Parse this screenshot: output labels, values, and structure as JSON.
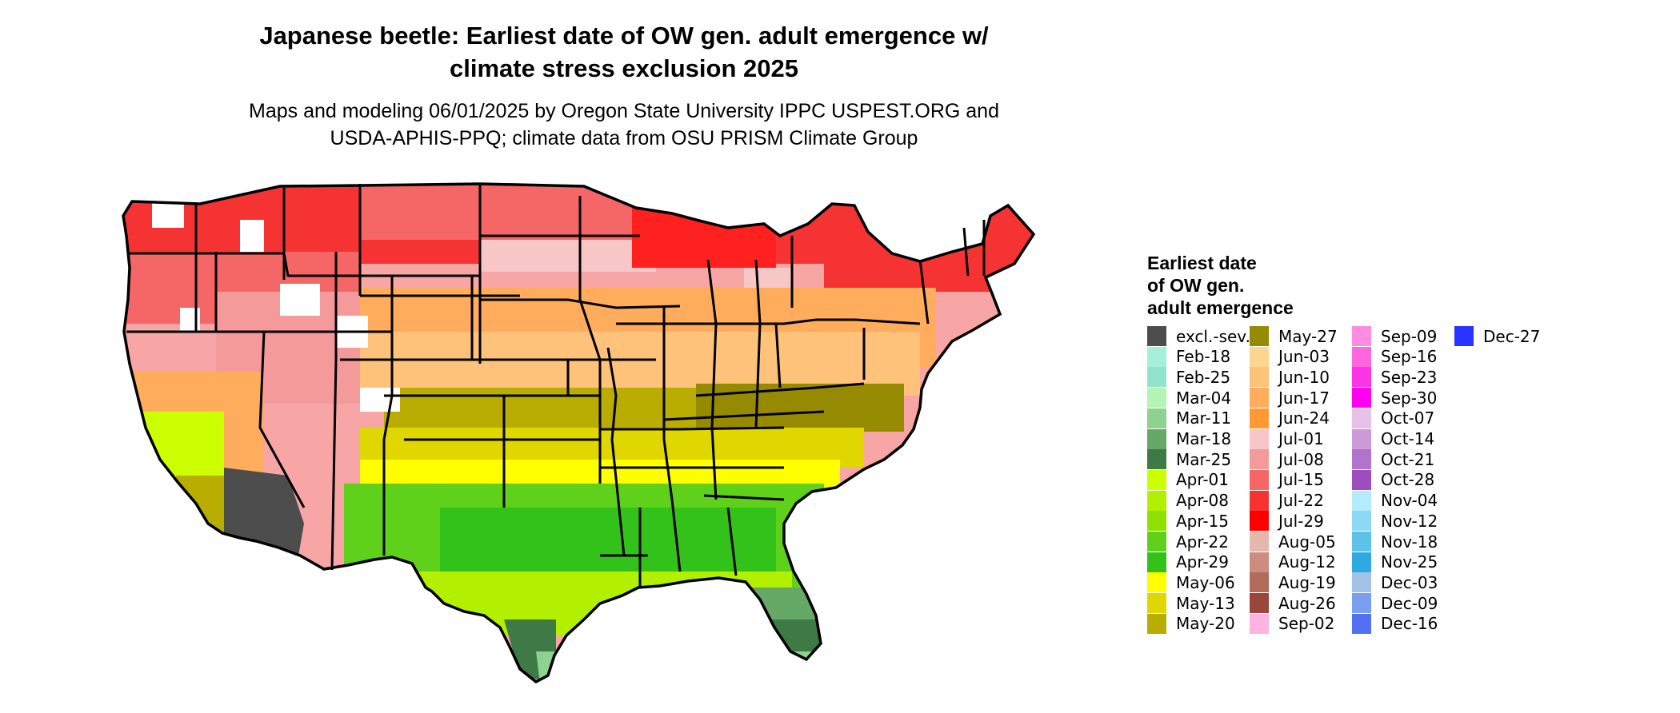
{
  "title": {
    "line1": "Japanese beetle: Earliest date of OW gen. adult emergence w/",
    "line2": "climate stress exclusion 2025"
  },
  "subtitle": {
    "line1": "Maps and modeling 06/01/2025 by Oregon State University IPPC USPEST.ORG and",
    "line2": "USDA-APHIS-PPQ; climate data from OSU PRISM Climate Group"
  },
  "legend": {
    "title_line1": "Earliest date",
    "title_line2": "of OW gen.",
    "title_line3": "adult emergence",
    "items": [
      {
        "label": "excl.-sev.",
        "color": "#4d4d4d"
      },
      {
        "label": "Feb-18",
        "color": "#a6f0d9"
      },
      {
        "label": "Feb-25",
        "color": "#90e3cc"
      },
      {
        "label": "Mar-04",
        "color": "#b4f5b4"
      },
      {
        "label": "Mar-11",
        "color": "#8fd18f"
      },
      {
        "label": "Mar-18",
        "color": "#66a866"
      },
      {
        "label": "Mar-25",
        "color": "#3d7a45"
      },
      {
        "label": "Apr-01",
        "color": "#ccff00"
      },
      {
        "label": "Apr-08",
        "color": "#b3f000"
      },
      {
        "label": "Apr-15",
        "color": "#8ee000"
      },
      {
        "label": "Apr-22",
        "color": "#5fd11a"
      },
      {
        "label": "Apr-29",
        "color": "#33c21a"
      },
      {
        "label": "May-06",
        "color": "#ffff00"
      },
      {
        "label": "May-13",
        "color": "#e0d600"
      },
      {
        "label": "May-20",
        "color": "#b8ad00"
      },
      {
        "label": "May-27",
        "color": "#968a00"
      },
      {
        "label": "Jun-03",
        "color": "#ffd68f"
      },
      {
        "label": "Jun-10",
        "color": "#ffc27a"
      },
      {
        "label": "Jun-17",
        "color": "#ffad5c"
      },
      {
        "label": "Jun-24",
        "color": "#ff9933"
      },
      {
        "label": "Jul-01",
        "color": "#f7c6c6"
      },
      {
        "label": "Jul-08",
        "color": "#f59a9a"
      },
      {
        "label": "Jul-15",
        "color": "#f56666"
      },
      {
        "label": "Jul-22",
        "color": "#f53333"
      },
      {
        "label": "Jul-29",
        "color": "#ff0000"
      },
      {
        "label": "Aug-05",
        "color": "#e6b8ad"
      },
      {
        "label": "Aug-12",
        "color": "#cc8c80"
      },
      {
        "label": "Aug-19",
        "color": "#b36b5c"
      },
      {
        "label": "Aug-26",
        "color": "#99473a"
      },
      {
        "label": "Sep-02",
        "color": "#ffb3e0"
      },
      {
        "label": "Sep-09",
        "color": "#ff8ce0"
      },
      {
        "label": "Sep-16",
        "color": "#ff66e0"
      },
      {
        "label": "Sep-23",
        "color": "#ff33e6"
      },
      {
        "label": "Sep-30",
        "color": "#ff00f0"
      },
      {
        "label": "Oct-07",
        "color": "#e6c2e6"
      },
      {
        "label": "Oct-14",
        "color": "#cc99d9"
      },
      {
        "label": "Oct-21",
        "color": "#b373cc"
      },
      {
        "label": "Oct-28",
        "color": "#9e4dbf"
      },
      {
        "label": "Nov-04",
        "color": "#b3ebff"
      },
      {
        "label": "Nov-12",
        "color": "#8cd9f5"
      },
      {
        "label": "Nov-18",
        "color": "#5cc2e6"
      },
      {
        "label": "Nov-25",
        "color": "#2eaae0"
      },
      {
        "label": "Dec-03",
        "color": "#a3c2e6"
      },
      {
        "label": "Dec-09",
        "color": "#7a9ef0"
      },
      {
        "label": "Dec-16",
        "color": "#5470f2"
      },
      {
        "label": "Dec-27",
        "color": "#2933ff"
      }
    ]
  }
}
